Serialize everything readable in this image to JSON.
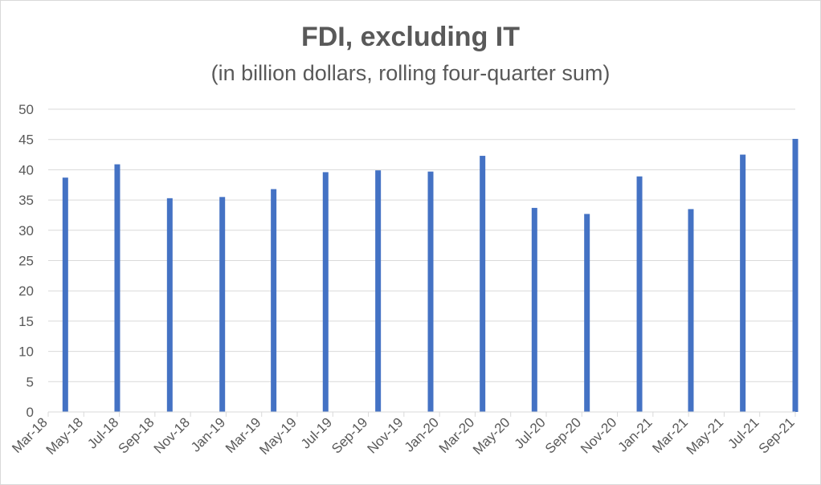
{
  "chart_data": {
    "type": "bar",
    "title": "FDI, excluding IT",
    "subtitle": "(in billion dollars, rolling four-quarter sum)",
    "xlabel": "",
    "ylabel": "",
    "ylim": [
      0,
      50
    ],
    "y_ticks": [
      "0",
      "5",
      "10",
      "15",
      "20",
      "25",
      "30",
      "35",
      "40",
      "45",
      "50"
    ],
    "x_tick_labels": [
      "Mar-18",
      "May-18",
      "Jul-18",
      "Sep-18",
      "Nov-18",
      "Jan-19",
      "Mar-19",
      "May-19",
      "Jul-19",
      "Sep-19",
      "Nov-19",
      "Jan-20",
      "Mar-20",
      "May-20",
      "Jul-20",
      "Sep-20",
      "Nov-20",
      "Jan-21",
      "Mar-21",
      "May-21",
      "Jul-21",
      "Sep-21"
    ],
    "x_range": [
      "2018-03-01",
      "2021-09-30"
    ],
    "dates": [
      "2018-03-31",
      "2018-06-30",
      "2018-09-30",
      "2018-12-31",
      "2019-03-31",
      "2019-06-30",
      "2019-09-30",
      "2019-12-31",
      "2020-03-31",
      "2020-06-30",
      "2020-09-30",
      "2020-12-31",
      "2021-03-31",
      "2021-06-30",
      "2021-09-30"
    ],
    "values": [
      38.7,
      40.9,
      35.3,
      35.5,
      36.8,
      39.6,
      39.9,
      39.7,
      42.3,
      33.7,
      32.7,
      38.9,
      33.5,
      42.5,
      45.1
    ],
    "grid": true,
    "legend": "none",
    "bar_color": "#4472c4",
    "grid_color": "#d9d9d9",
    "text_color": "#595959"
  }
}
